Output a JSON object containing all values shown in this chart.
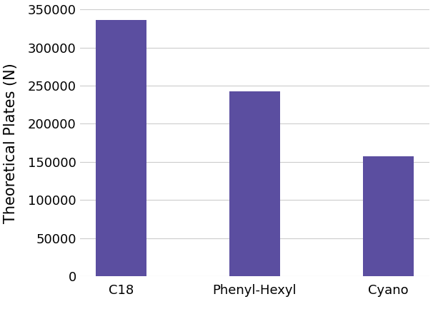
{
  "categories": [
    "C18",
    "Phenyl-Hexyl",
    "Cyano"
  ],
  "values": [
    336000,
    243000,
    157000
  ],
  "bar_color": "#5B4EA0",
  "ylabel": "Theoretical Plates (N)",
  "ylim": [
    0,
    350000
  ],
  "yticks": [
    0,
    50000,
    100000,
    150000,
    200000,
    250000,
    300000,
    350000
  ],
  "background_color": "#ffffff",
  "grid_color": "#cccccc",
  "bar_width": 0.38,
  "ylabel_fontsize": 15,
  "tick_fontsize": 13,
  "figsize": [
    6.2,
    4.4
  ],
  "dpi": 100
}
